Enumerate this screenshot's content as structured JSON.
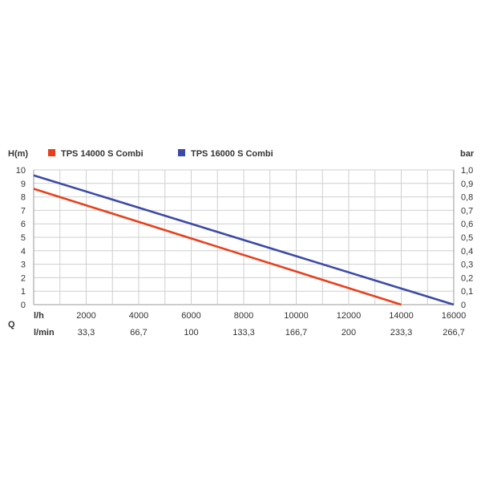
{
  "chart_data": {
    "type": "line",
    "left_axis_label": "H(m)",
    "right_axis_label": "bar",
    "q_label": "Q",
    "row1_unit": "l/h",
    "row2_unit": "l/min",
    "y_left_ticks": [
      "0",
      "1",
      "2",
      "3",
      "4",
      "5",
      "6",
      "7",
      "8",
      "9",
      "10"
    ],
    "y_right_ticks": [
      "0",
      "0,1",
      "0,2",
      "0,3",
      "0,4",
      "0,5",
      "0,6",
      "0,7",
      "0,8",
      "0,9",
      "1,0"
    ],
    "x_ticks_lh": [
      "2000",
      "4000",
      "6000",
      "8000",
      "10000",
      "12000",
      "14000",
      "16000"
    ],
    "x_ticks_lmin": [
      "33,3",
      "66,7",
      "100",
      "133,3",
      "166,7",
      "200",
      "233,3",
      "266,7"
    ],
    "xlim": [
      0,
      16000
    ],
    "ylim": [
      0,
      10
    ],
    "grid": true,
    "legend_position": "top",
    "series": [
      {
        "name": "TPS 14000 S Combi",
        "color": "#e8401c",
        "x": [
          0,
          14000
        ],
        "y": [
          8.6,
          0
        ]
      },
      {
        "name": "TPS 16000 S Combi",
        "color": "#3b4aa8",
        "x": [
          0,
          16000
        ],
        "y": [
          9.6,
          0
        ]
      }
    ]
  }
}
